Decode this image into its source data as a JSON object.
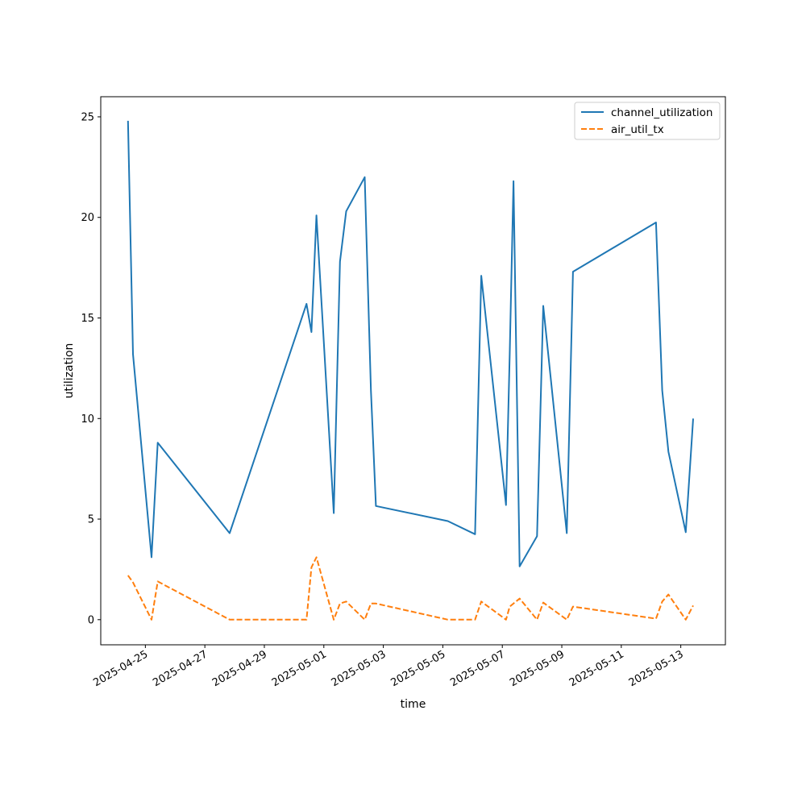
{
  "chart_data": {
    "type": "line",
    "title": "",
    "xlabel": "time",
    "ylabel": "utilization",
    "ylim": [
      -1.25,
      26
    ],
    "xlim": [
      "2025-04-23T12:00",
      "2025-05-14T12:00"
    ],
    "yticks": [
      0,
      5,
      10,
      15,
      20,
      25
    ],
    "xticks": [
      "2025-04-25",
      "2025-04-27",
      "2025-04-29",
      "2025-05-01",
      "2025-05-03",
      "2025-05-05",
      "2025-05-07",
      "2025-05-09",
      "2025-05-11",
      "2025-05-13"
    ],
    "grid": false,
    "legend_position": "top-right",
    "series": [
      {
        "name": "channel_utilization",
        "color": "#1f77b4",
        "style": "solid",
        "points": [
          [
            "2025-04-24T10:00",
            24.8
          ],
          [
            "2025-04-24T14:00",
            13.2
          ],
          [
            "2025-04-25T05:00",
            3.1
          ],
          [
            "2025-04-25T10:00",
            8.8
          ],
          [
            "2025-04-27T20:00",
            4.3
          ],
          [
            "2025-04-30T10:00",
            15.7
          ],
          [
            "2025-04-30T14:00",
            14.3
          ],
          [
            "2025-04-30T18:00",
            20.1
          ],
          [
            "2025-05-01T08:00",
            5.3
          ],
          [
            "2025-05-01T13:00",
            17.8
          ],
          [
            "2025-05-01T18:00",
            20.3
          ],
          [
            "2025-05-02T09:00",
            22.0
          ],
          [
            "2025-05-02T14:00",
            11.4
          ],
          [
            "2025-05-02T18:00",
            5.65
          ],
          [
            "2025-05-05T04:00",
            4.9
          ],
          [
            "2025-05-06T02:00",
            4.25
          ],
          [
            "2025-05-06T07:00",
            17.1
          ],
          [
            "2025-05-07T03:00",
            5.7
          ],
          [
            "2025-05-07T06:00",
            13.2
          ],
          [
            "2025-05-07T09:00",
            21.8
          ],
          [
            "2025-05-07T14:00",
            2.65
          ],
          [
            "2025-05-08T04:00",
            4.15
          ],
          [
            "2025-05-08T09:00",
            15.6
          ],
          [
            "2025-05-09T04:00",
            4.3
          ],
          [
            "2025-05-09T09:00",
            17.3
          ],
          [
            "2025-05-12T04:00",
            19.75
          ],
          [
            "2025-05-12T09:00",
            11.4
          ],
          [
            "2025-05-12T14:00",
            8.35
          ],
          [
            "2025-05-13T04:00",
            4.35
          ],
          [
            "2025-05-13T10:00",
            10.0
          ]
        ]
      },
      {
        "name": "air_util_tx",
        "color": "#ff7f0e",
        "style": "dashed",
        "points": [
          [
            "2025-04-24T10:00",
            2.2
          ],
          [
            "2025-04-24T14:00",
            1.85
          ],
          [
            "2025-04-25T05:00",
            0.0
          ],
          [
            "2025-04-25T10:00",
            1.9
          ],
          [
            "2025-04-27T20:00",
            0.0
          ],
          [
            "2025-04-30T10:00",
            0.0
          ],
          [
            "2025-04-30T14:00",
            2.6
          ],
          [
            "2025-04-30T18:00",
            3.1
          ],
          [
            "2025-05-01T08:00",
            0.0
          ],
          [
            "2025-05-01T13:00",
            0.8
          ],
          [
            "2025-05-01T18:00",
            0.9
          ],
          [
            "2025-05-02T09:00",
            0.0
          ],
          [
            "2025-05-02T14:00",
            0.8
          ],
          [
            "2025-05-02T18:00",
            0.8
          ],
          [
            "2025-05-05T04:00",
            0.0
          ],
          [
            "2025-05-06T02:00",
            0.0
          ],
          [
            "2025-05-06T07:00",
            0.9
          ],
          [
            "2025-05-07T03:00",
            0.0
          ],
          [
            "2025-05-07T06:00",
            0.65
          ],
          [
            "2025-05-07T14:00",
            1.05
          ],
          [
            "2025-05-08T04:00",
            0.0
          ],
          [
            "2025-05-08T09:00",
            0.85
          ],
          [
            "2025-05-09T04:00",
            0.0
          ],
          [
            "2025-05-09T09:00",
            0.65
          ],
          [
            "2025-05-12T04:00",
            0.05
          ],
          [
            "2025-05-12T09:00",
            0.9
          ],
          [
            "2025-05-12T14:00",
            1.25
          ],
          [
            "2025-05-13T04:00",
            0.0
          ],
          [
            "2025-05-13T10:00",
            0.7
          ]
        ]
      }
    ]
  }
}
